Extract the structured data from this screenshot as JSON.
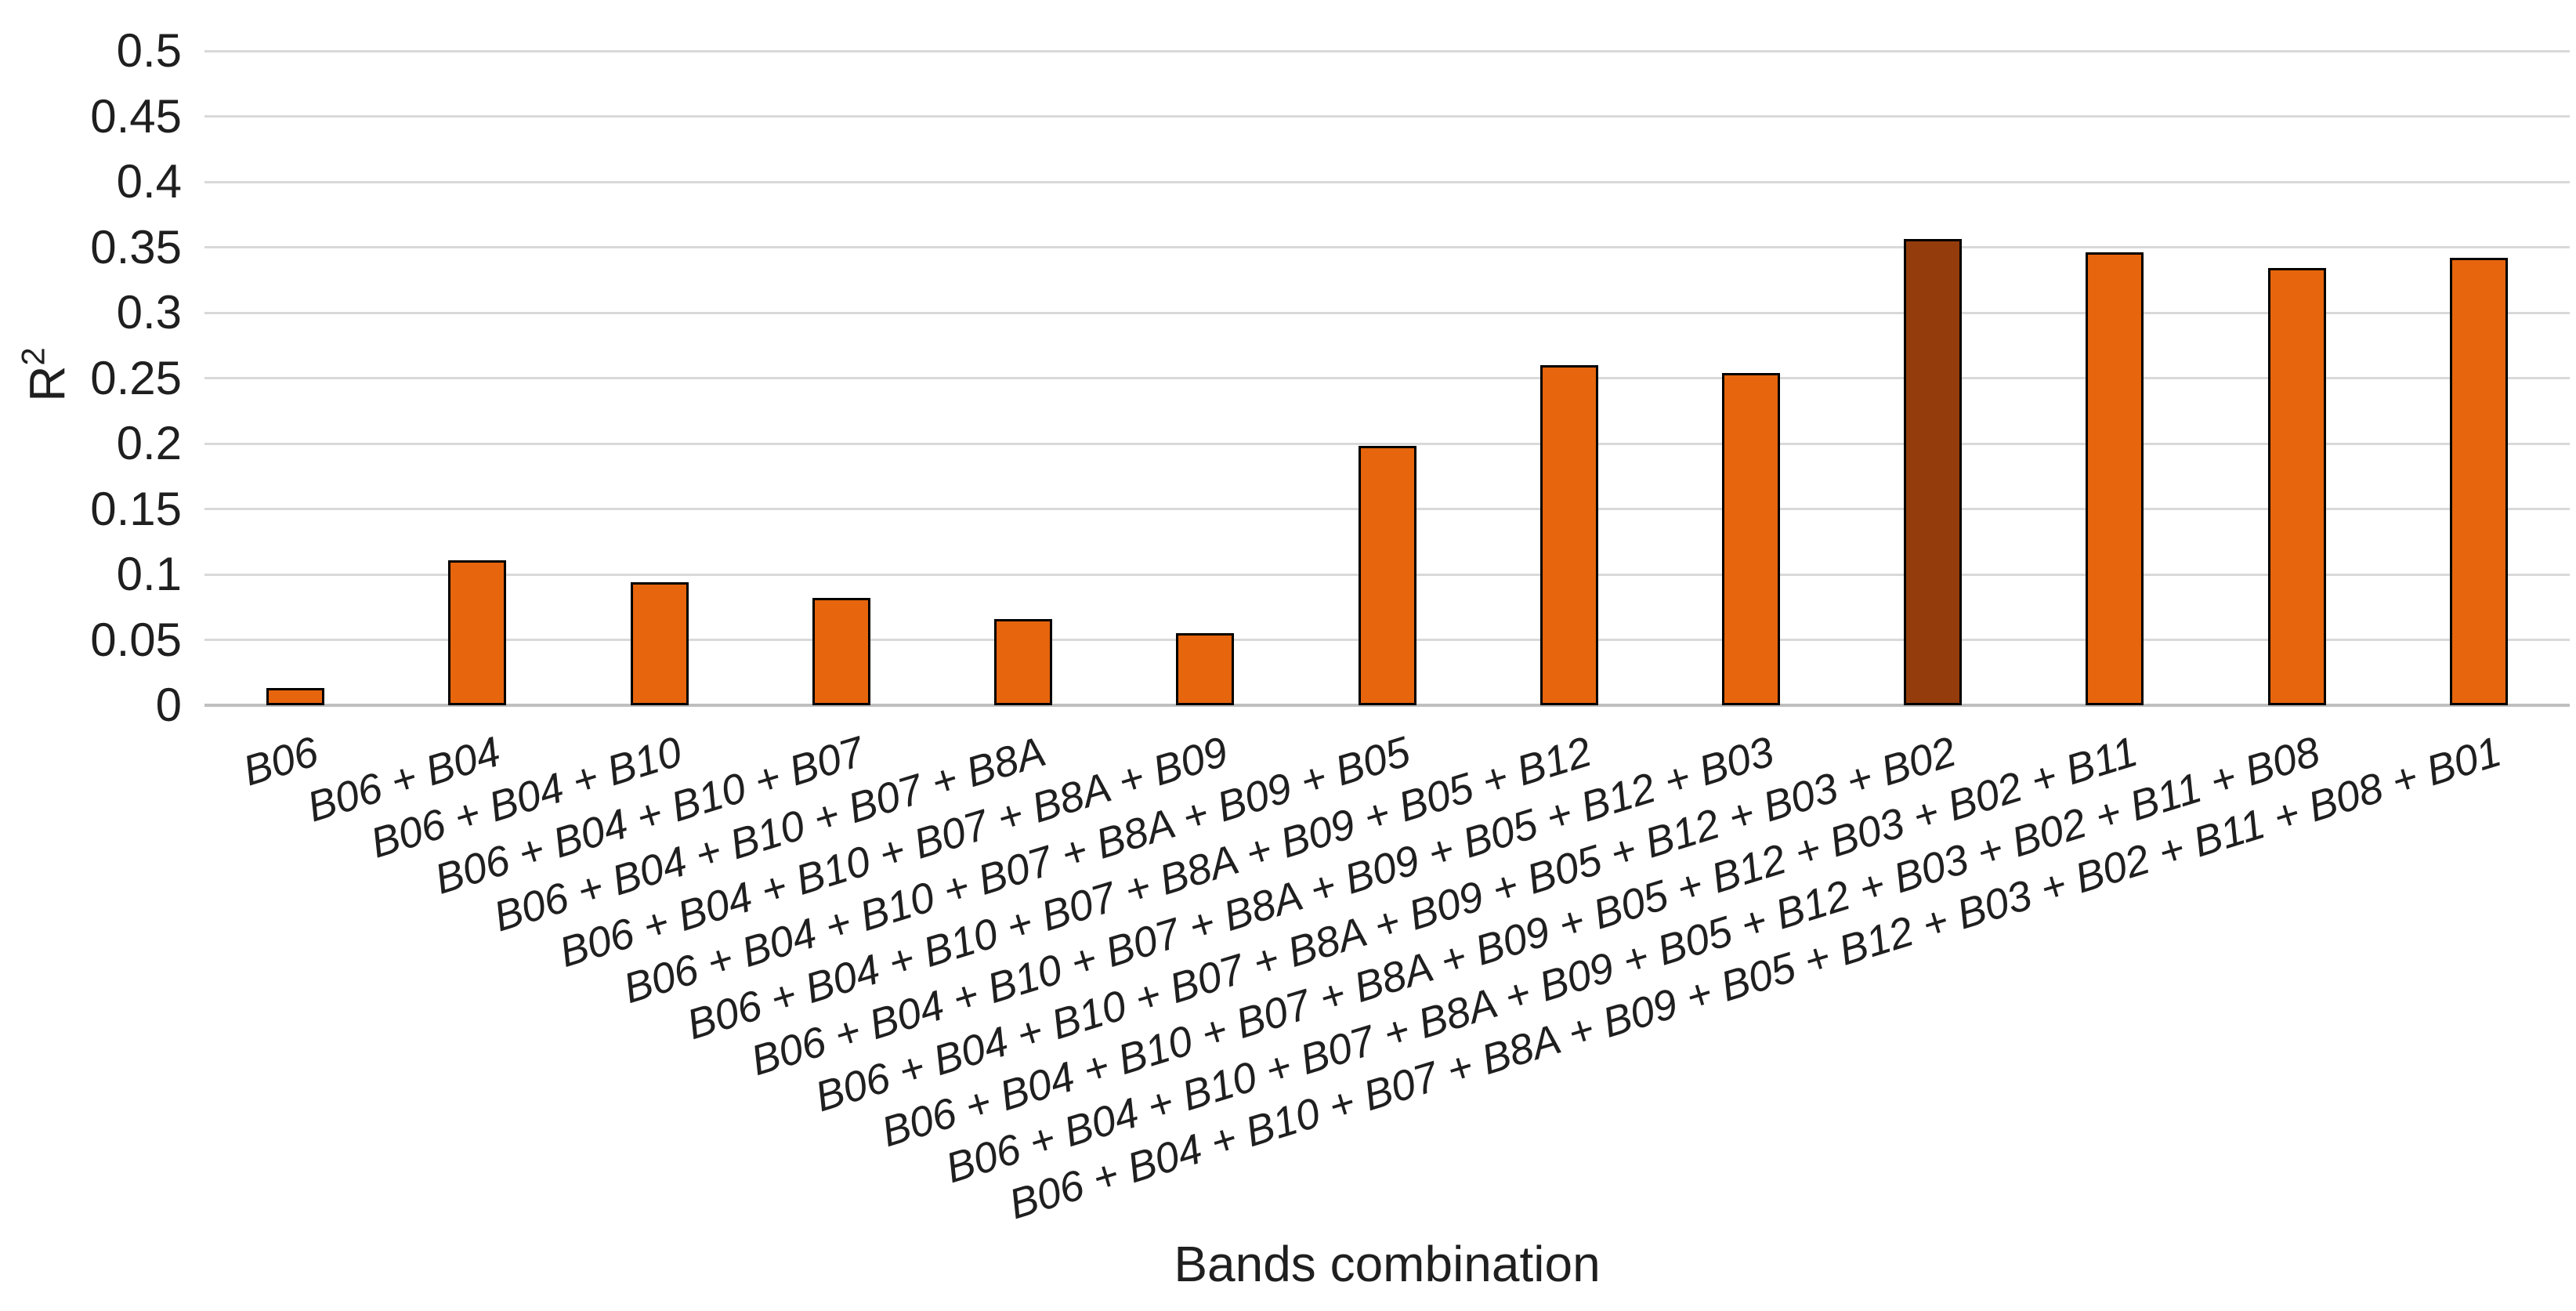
{
  "chart_data": {
    "type": "bar",
    "title": "",
    "xlabel": "Bands combination",
    "ylabel": "R²",
    "categories": [
      "B06",
      "B06 + B04",
      "B06 + B04 + B10",
      "B06 + B04 + B10 + B07",
      "B06 + B04 + B10 + B07 + B8A",
      "B06 + B04 + B10 + B07 + B8A + B09",
      "B06 + B04 + B10 + B07 + B8A + B09 + B05",
      "B06 + B04 + B10 + B07 + B8A + B09 + B05 + B12",
      "B06 + B04 + B10 + B07 + B8A + B09 + B05 + B12 + B03",
      "B06 + B04 + B10 + B07 + B8A + B09 + B05 + B12 + B03 + B02",
      "B06 + B04 + B10 + B07 + B8A + B09 + B05 + B12 + B03 + B02 + B11",
      "B06 + B04 + B10 + B07 + B8A + B09 + B05 + B12 + B03 + B02 + B11 + B08",
      "B06 + B04 + B10 + B07 + B8A + B09 + B05 + B12 + B03 + B02 + B11 + B08 + B01"
    ],
    "values": [
      0.013,
      0.111,
      0.094,
      0.082,
      0.066,
      0.055,
      0.198,
      0.26,
      0.254,
      0.356,
      0.346,
      0.334,
      0.342
    ],
    "ylim": [
      0,
      0.5
    ],
    "yticks": [
      "0",
      "0.05",
      "0.1",
      "0.15",
      "0.2",
      "0.25",
      "0.3",
      "0.35",
      "0.4",
      "0.45",
      "0.5"
    ],
    "grid": true,
    "legend": "none",
    "bar_fill_color": "#E6650D",
    "bar_highlight_color": "#943C0C",
    "bar_highlight_index": 9,
    "bar_border_color": "#000000",
    "gridline_color": "#D9D9D9",
    "axis_line_color": "#BFBFBF",
    "text_color": "#1F1F1F"
  }
}
